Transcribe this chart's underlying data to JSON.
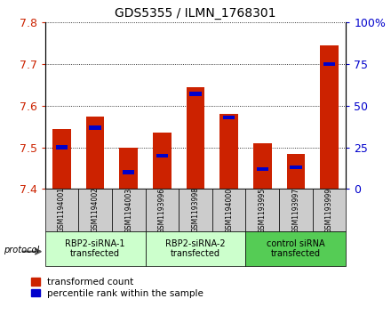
{
  "title": "GDS5355 / ILMN_1768301",
  "samples": [
    "GSM1194001",
    "GSM1194002",
    "GSM1194003",
    "GSM1193996",
    "GSM1193998",
    "GSM1194000",
    "GSM1193995",
    "GSM1193997",
    "GSM1193999"
  ],
  "red_values": [
    7.545,
    7.575,
    7.5,
    7.535,
    7.645,
    7.58,
    7.51,
    7.485,
    7.745
  ],
  "blue_values": [
    25.0,
    37.0,
    10.0,
    20.0,
    57.0,
    43.0,
    12.0,
    13.0,
    75.0
  ],
  "ylim_left": [
    7.4,
    7.8
  ],
  "ylim_right": [
    0,
    100
  ],
  "yticks_left": [
    7.4,
    7.5,
    7.6,
    7.7,
    7.8
  ],
  "yticks_right": [
    0,
    25,
    50,
    75,
    100
  ],
  "ytick_labels_right": [
    "0",
    "25",
    "50",
    "75",
    "100%"
  ],
  "groups": [
    {
      "label": "RBP2-siRNA-1\ntransfected",
      "start": 0,
      "end": 3,
      "color": "#ccffcc"
    },
    {
      "label": "RBP2-siRNA-2\ntransfected",
      "start": 3,
      "end": 6,
      "color": "#ccffcc"
    },
    {
      "label": "control siRNA\ntransfected",
      "start": 6,
      "end": 9,
      "color": "#55cc55"
    }
  ],
  "legend_red": "transformed count",
  "legend_blue": "percentile rank within the sample",
  "protocol_label": "protocol",
  "bar_bottom": 7.4,
  "left_axis_color": "#cc2200",
  "right_axis_color": "#0000cc",
  "grid_color": "#000000",
  "sample_area_color": "#cccccc",
  "bar_width": 0.55
}
